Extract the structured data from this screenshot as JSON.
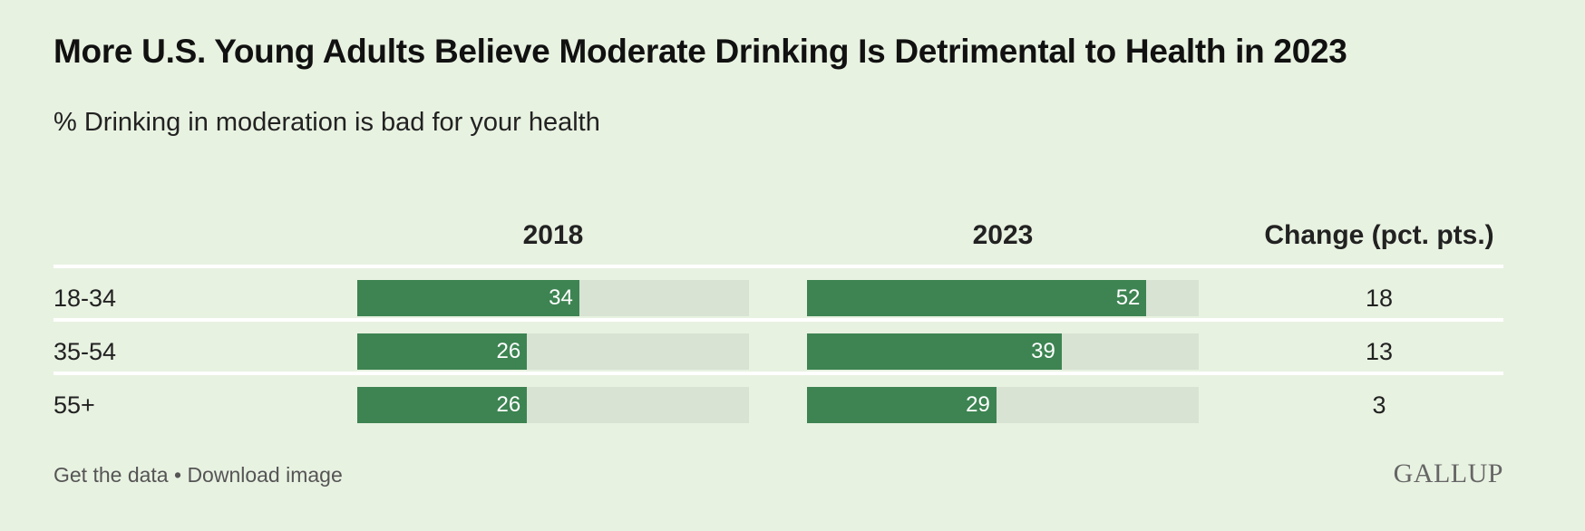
{
  "title": "More U.S. Young Adults Believe Moderate Drinking Is Detrimental to Health in 2023",
  "subtitle": "% Drinking in moderation is bad for your health",
  "columns": {
    "y2018": "2018",
    "y2023": "2023",
    "change": "Change (pct. pts.)"
  },
  "rows": [
    {
      "label": "18-34",
      "v2018": "34",
      "v2023": "52",
      "change": "18"
    },
    {
      "label": "35-54",
      "v2018": "26",
      "v2023": "39",
      "change": "13"
    },
    {
      "label": "55+",
      "v2018": "26",
      "v2023": "29",
      "change": "3"
    }
  ],
  "footer": {
    "get_data": "Get the data",
    "separator": " • ",
    "download": "Download image"
  },
  "logo": "GALLUP",
  "colors": {
    "background": "#e8f2e1",
    "bar": "#3d8452",
    "track": "#d8e3d3"
  },
  "chart_data": {
    "type": "bar",
    "orientation": "horizontal",
    "title": "More U.S. Young Adults Believe Moderate Drinking Is Detrimental to Health in 2023",
    "subtitle": "% Drinking in moderation is bad for your health",
    "categories": [
      "18-34",
      "35-54",
      "55+"
    ],
    "series": [
      {
        "name": "2018",
        "values": [
          34,
          26,
          26
        ]
      },
      {
        "name": "2023",
        "values": [
          52,
          39,
          29
        ]
      }
    ],
    "change": {
      "name": "Change (pct. pts.)",
      "values": [
        18,
        13,
        3
      ]
    },
    "xlim": [
      0,
      60
    ],
    "grid": false
  }
}
